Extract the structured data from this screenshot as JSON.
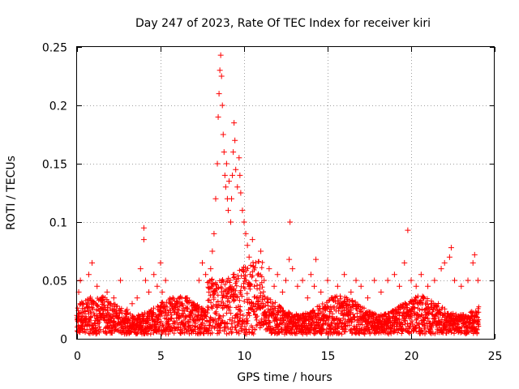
{
  "chart_data": {
    "type": "scatter",
    "title": "Day 247 of 2023, Rate Of TEC Index for receiver kiri",
    "xlabel": "GPS time / hours",
    "ylabel": "ROTI / TECUs",
    "xlim": [
      0,
      25
    ],
    "ylim": [
      0,
      0.25
    ],
    "xticks": [
      0,
      5,
      10,
      15,
      20,
      25
    ],
    "yticks": [
      0,
      0.05,
      0.1,
      0.15,
      0.2,
      0.25
    ],
    "xtick_labels": [
      "0",
      "5",
      "10",
      "15",
      "20",
      "25"
    ],
    "ytick_labels": [
      "0",
      "0.05",
      "0.1",
      "0.15",
      "0.2",
      "0.25"
    ],
    "grid": true,
    "marker": "plus",
    "color": "#ff0000",
    "series": [
      {
        "name": "ROTI",
        "points": [
          [
            0.0,
            0.02
          ],
          [
            0.1,
            0.04
          ],
          [
            0.2,
            0.05
          ],
          [
            0.3,
            0.03
          ],
          [
            0.5,
            0.015
          ],
          [
            0.7,
            0.055
          ],
          [
            0.9,
            0.065
          ],
          [
            1.0,
            0.03
          ],
          [
            1.2,
            0.045
          ],
          [
            1.5,
            0.02
          ],
          [
            1.8,
            0.04
          ],
          [
            2.0,
            0.03
          ],
          [
            2.2,
            0.035
          ],
          [
            2.4,
            0.02
          ],
          [
            2.6,
            0.05
          ],
          [
            3.0,
            0.025
          ],
          [
            3.3,
            0.03
          ],
          [
            3.6,
            0.035
          ],
          [
            3.8,
            0.06
          ],
          [
            4.0,
            0.095
          ],
          [
            4.0,
            0.085
          ],
          [
            4.1,
            0.05
          ],
          [
            4.3,
            0.04
          ],
          [
            4.6,
            0.055
          ],
          [
            4.8,
            0.045
          ],
          [
            5.0,
            0.065
          ],
          [
            5.1,
            0.04
          ],
          [
            5.3,
            0.05
          ],
          [
            5.6,
            0.03
          ],
          [
            6.0,
            0.025
          ],
          [
            6.3,
            0.03
          ],
          [
            6.6,
            0.035
          ],
          [
            7.0,
            0.03
          ],
          [
            7.3,
            0.05
          ],
          [
            7.5,
            0.065
          ],
          [
            7.7,
            0.055
          ],
          [
            7.9,
            0.04
          ],
          [
            8.0,
            0.06
          ],
          [
            8.1,
            0.075
          ],
          [
            8.2,
            0.09
          ],
          [
            8.3,
            0.12
          ],
          [
            8.4,
            0.15
          ],
          [
            8.45,
            0.19
          ],
          [
            8.5,
            0.21
          ],
          [
            8.55,
            0.23
          ],
          [
            8.6,
            0.243
          ],
          [
            8.65,
            0.225
          ],
          [
            8.7,
            0.2
          ],
          [
            8.75,
            0.175
          ],
          [
            8.8,
            0.16
          ],
          [
            8.85,
            0.14
          ],
          [
            8.9,
            0.13
          ],
          [
            8.95,
            0.15
          ],
          [
            9.0,
            0.12
          ],
          [
            9.05,
            0.11
          ],
          [
            9.1,
            0.135
          ],
          [
            9.2,
            0.1
          ],
          [
            9.25,
            0.12
          ],
          [
            9.3,
            0.14
          ],
          [
            9.35,
            0.16
          ],
          [
            9.4,
            0.185
          ],
          [
            9.45,
            0.17
          ],
          [
            9.5,
            0.145
          ],
          [
            9.6,
            0.13
          ],
          [
            9.7,
            0.155
          ],
          [
            9.75,
            0.14
          ],
          [
            9.8,
            0.125
          ],
          [
            9.9,
            0.11
          ],
          [
            10.0,
            0.1
          ],
          [
            10.1,
            0.09
          ],
          [
            10.2,
            0.08
          ],
          [
            10.3,
            0.07
          ],
          [
            10.5,
            0.085
          ],
          [
            10.7,
            0.065
          ],
          [
            11.0,
            0.075
          ],
          [
            11.2,
            0.05
          ],
          [
            11.5,
            0.06
          ],
          [
            11.8,
            0.045
          ],
          [
            12.0,
            0.055
          ],
          [
            12.3,
            0.04
          ],
          [
            12.5,
            0.05
          ],
          [
            12.7,
            0.068
          ],
          [
            12.75,
            0.1
          ],
          [
            12.9,
            0.06
          ],
          [
            13.2,
            0.045
          ],
          [
            13.5,
            0.05
          ],
          [
            13.8,
            0.035
          ],
          [
            14.0,
            0.055
          ],
          [
            14.2,
            0.045
          ],
          [
            14.3,
            0.068
          ],
          [
            14.6,
            0.04
          ],
          [
            15.0,
            0.05
          ],
          [
            15.3,
            0.035
          ],
          [
            15.6,
            0.045
          ],
          [
            16.0,
            0.055
          ],
          [
            16.4,
            0.04
          ],
          [
            16.7,
            0.05
          ],
          [
            17.0,
            0.045
          ],
          [
            17.4,
            0.035
          ],
          [
            17.8,
            0.05
          ],
          [
            18.2,
            0.04
          ],
          [
            18.6,
            0.05
          ],
          [
            19.0,
            0.055
          ],
          [
            19.3,
            0.045
          ],
          [
            19.6,
            0.065
          ],
          [
            19.8,
            0.093
          ],
          [
            20.0,
            0.05
          ],
          [
            20.3,
            0.045
          ],
          [
            20.6,
            0.055
          ],
          [
            21.0,
            0.045
          ],
          [
            21.4,
            0.05
          ],
          [
            21.8,
            0.06
          ],
          [
            22.0,
            0.065
          ],
          [
            22.3,
            0.07
          ],
          [
            22.4,
            0.078
          ],
          [
            22.6,
            0.05
          ],
          [
            23.0,
            0.045
          ],
          [
            23.4,
            0.05
          ],
          [
            23.7,
            0.065
          ],
          [
            23.8,
            0.072
          ],
          [
            24.0,
            0.05
          ]
        ]
      }
    ]
  }
}
